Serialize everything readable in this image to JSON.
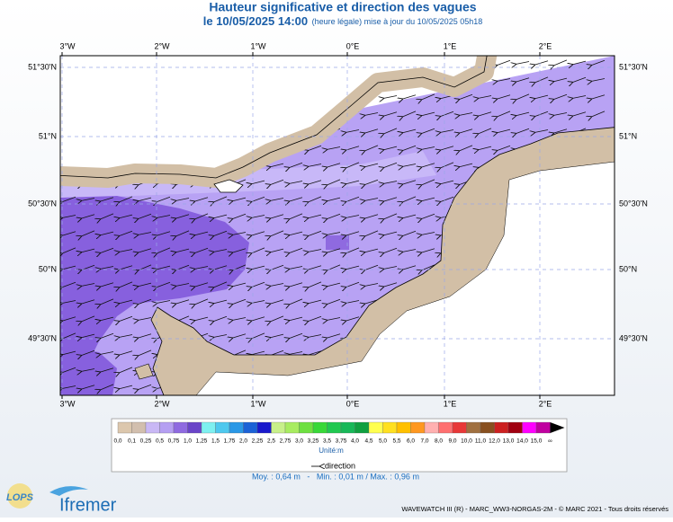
{
  "header": {
    "title": "Hauteur significative et direction des vagues",
    "date": "le 10/05/2025 14:00",
    "note": "(heure légale) mise à jour du 10/05/2025 05h18"
  },
  "map": {
    "lon_labels": [
      "3°W",
      "2°W",
      "1°W",
      "0°E",
      "1°E",
      "2°E"
    ],
    "lat_labels": [
      "51°30'N",
      "51°N",
      "50°30'N",
      "50°N",
      "49°30'N"
    ]
  },
  "legend": {
    "labels": [
      "0,0",
      "0,1",
      "0,25",
      "0,5",
      "0,75",
      "1,0",
      "1,25",
      "1,5",
      "1,75",
      "2,0",
      "2,25",
      "2,5",
      "2,75",
      "3,0",
      "3,25",
      "3,5",
      "3,75",
      "4,0",
      "4,5",
      "5,0",
      "5,5",
      "6,0",
      "7,0",
      "8,0",
      "9,0",
      "10,0",
      "11,0",
      "12,0",
      "13,0",
      "14,0",
      "15,0",
      "∞"
    ],
    "colors": [
      "#dcc7ad",
      "#d2bfae",
      "#c9b8f5",
      "#b59ff2",
      "#8f6ae0",
      "#6a45c8",
      "#7ef0f0",
      "#4ec8ee",
      "#2a98e6",
      "#1c62d6",
      "#1a1acc",
      "#c8f08a",
      "#a8ec60",
      "#6ee040",
      "#38d838",
      "#20c850",
      "#18b858",
      "#10a040",
      "#ffff50",
      "#ffe020",
      "#ffc000",
      "#ff9820",
      "#ffb0b0",
      "#ff7070",
      "#e83838",
      "#a07040",
      "#885020",
      "#cc2020",
      "#a00010",
      "#ff00ff",
      "#c000a0"
    ],
    "unit": "Unité:m",
    "direction": "direction"
  },
  "stats": "Moy. : 0,64 m   -   Min. : 0,01 m / Max. : 0,96 m",
  "footer": {
    "lops": "LOPS",
    "ifremer": "Ifremer",
    "credits": "WAVEWATCH III (R) - MARC_WW3-NORGAS-2M - © MARC 2021 - Tous droits réservés"
  }
}
